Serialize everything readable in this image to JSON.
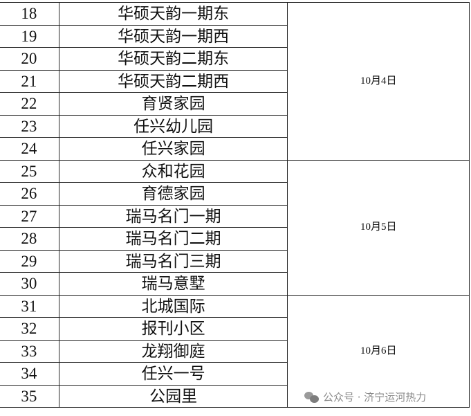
{
  "table": {
    "groups": [
      {
        "date": "10月4日",
        "rows": [
          {
            "no": "18",
            "name": "华硕天韵一期东"
          },
          {
            "no": "19",
            "name": "华硕天韵一期西"
          },
          {
            "no": "20",
            "name": "华硕天韵二期东"
          },
          {
            "no": "21",
            "name": "华硕天韵二期西"
          },
          {
            "no": "22",
            "name": "育贤家园"
          },
          {
            "no": "23",
            "name": "任兴幼儿园"
          },
          {
            "no": "24",
            "name": "任兴家园"
          }
        ]
      },
      {
        "date": "10月5日",
        "rows": [
          {
            "no": "25",
            "name": "众和花园"
          },
          {
            "no": "26",
            "name": "育德家园"
          },
          {
            "no": "27",
            "name": "瑞马名门一期"
          },
          {
            "no": "28",
            "name": "瑞马名门二期"
          },
          {
            "no": "29",
            "name": "瑞马名门三期"
          },
          {
            "no": "30",
            "name": "瑞马意墅"
          }
        ]
      },
      {
        "date": "10月6日",
        "rows": [
          {
            "no": "31",
            "name": "北城国际"
          },
          {
            "no": "32",
            "name": "报刊小区"
          },
          {
            "no": "33",
            "name": "龙翔御庭"
          },
          {
            "no": "34",
            "name": "任兴一号"
          },
          {
            "no": "35",
            "name": "公园里"
          }
        ]
      }
    ]
  },
  "watermark": {
    "icon": "wechat-icon",
    "text": "公众号 · 济宁运河热力"
  }
}
